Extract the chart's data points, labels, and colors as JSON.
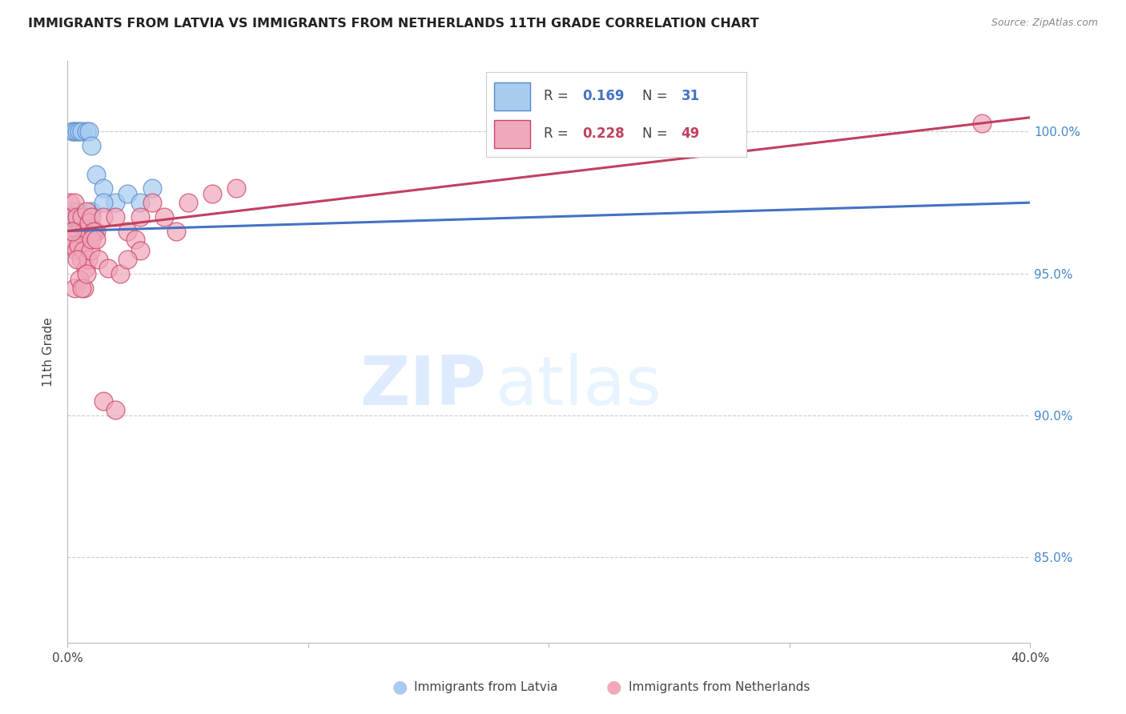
{
  "title": "IMMIGRANTS FROM LATVIA VS IMMIGRANTS FROM NETHERLANDS 11TH GRADE CORRELATION CHART",
  "source": "Source: ZipAtlas.com",
  "ylabel": "11th Grade",
  "y_ticks_right": [
    85.0,
    90.0,
    95.0,
    100.0
  ],
  "x_min": 0.0,
  "x_max": 40.0,
  "y_min": 82.0,
  "y_max": 102.5,
  "latvia_R": 0.169,
  "latvia_N": 31,
  "netherlands_R": 0.228,
  "netherlands_N": 49,
  "latvia_color": "#A8CCF0",
  "netherlands_color": "#F0A8BB",
  "latvia_edge_color": "#5588CC",
  "netherlands_edge_color": "#CC4466",
  "latvia_line_color": "#4472C4",
  "netherlands_line_color": "#C04060",
  "watermark_zip": "ZIP",
  "watermark_atlas": "atlas",
  "latvia_x": [
    0.2,
    0.3,
    0.4,
    0.5,
    0.6,
    0.8,
    0.9,
    1.0,
    1.2,
    1.5,
    2.0,
    2.5,
    3.0,
    0.1,
    0.15,
    0.2,
    0.25,
    0.3,
    0.35,
    0.4,
    0.5,
    0.6,
    0.7,
    0.8,
    1.0,
    1.5,
    0.2,
    0.3,
    0.5,
    0.7,
    3.5
  ],
  "latvia_y": [
    100.0,
    100.0,
    100.0,
    100.0,
    100.0,
    100.0,
    100.0,
    99.5,
    98.5,
    98.0,
    97.5,
    97.8,
    97.5,
    97.0,
    97.2,
    97.0,
    96.8,
    97.0,
    96.5,
    97.2,
    97.0,
    96.8,
    96.5,
    97.0,
    97.2,
    97.5,
    96.0,
    96.0,
    96.2,
    96.5,
    98.0
  ],
  "netherlands_x": [
    0.1,
    0.2,
    0.3,
    0.4,
    0.5,
    0.6,
    0.7,
    0.8,
    0.9,
    1.0,
    1.2,
    1.5,
    2.0,
    2.5,
    3.0,
    3.5,
    4.0,
    5.0,
    6.0,
    7.0,
    0.15,
    0.25,
    0.35,
    0.45,
    0.55,
    0.65,
    0.75,
    0.85,
    0.95,
    1.1,
    1.3,
    1.7,
    2.2,
    2.8,
    0.3,
    0.5,
    0.7,
    1.0,
    1.5,
    2.0,
    3.0,
    4.5,
    0.4,
    0.6,
    0.8,
    1.2,
    2.5,
    38.0,
    0.2
  ],
  "netherlands_y": [
    97.5,
    97.0,
    97.5,
    97.0,
    96.5,
    97.0,
    96.5,
    97.2,
    96.8,
    97.0,
    96.5,
    97.0,
    97.0,
    96.5,
    97.0,
    97.5,
    97.0,
    97.5,
    97.8,
    98.0,
    96.2,
    96.0,
    95.8,
    96.0,
    95.5,
    95.8,
    95.2,
    95.5,
    95.8,
    96.5,
    95.5,
    95.2,
    95.0,
    96.2,
    94.5,
    94.8,
    94.5,
    96.2,
    90.5,
    90.2,
    95.8,
    96.5,
    95.5,
    94.5,
    95.0,
    96.2,
    95.5,
    100.3,
    96.5
  ]
}
